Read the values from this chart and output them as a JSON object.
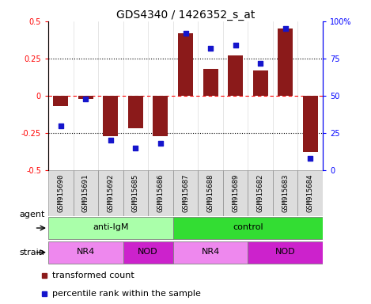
{
  "title": "GDS4340 / 1426352_s_at",
  "samples": [
    "GSM915690",
    "GSM915691",
    "GSM915692",
    "GSM915685",
    "GSM915686",
    "GSM915687",
    "GSM915688",
    "GSM915689",
    "GSM915682",
    "GSM915683",
    "GSM915684"
  ],
  "bar_values": [
    -0.07,
    -0.02,
    -0.27,
    -0.22,
    -0.27,
    0.42,
    0.18,
    0.27,
    0.17,
    0.45,
    -0.38
  ],
  "dot_values_pct": [
    30,
    48,
    20,
    15,
    18,
    92,
    82,
    84,
    72,
    95,
    8
  ],
  "bar_color": "#8B1A1A",
  "dot_color": "#1515CC",
  "ylim": [
    -0.5,
    0.5
  ],
  "y2lim": [
    0,
    100
  ],
  "yticks": [
    -0.5,
    -0.25,
    0,
    0.25,
    0.5
  ],
  "y2ticks": [
    0,
    25,
    50,
    75,
    100
  ],
  "ytick_labels": [
    "-0.5",
    "-0.25",
    "0",
    "0.25",
    "0.5"
  ],
  "y2tick_labels": [
    "0",
    "25",
    "50",
    "75",
    "100%"
  ],
  "agent_groups": [
    {
      "label": "anti-IgM",
      "start": 0,
      "end": 5,
      "color": "#AAFFAA"
    },
    {
      "label": "control",
      "start": 5,
      "end": 11,
      "color": "#33DD33"
    }
  ],
  "strain_groups": [
    {
      "label": "NR4",
      "start": 0,
      "end": 3,
      "color": "#EE88EE"
    },
    {
      "label": "NOD",
      "start": 3,
      "end": 5,
      "color": "#CC22CC"
    },
    {
      "label": "NR4",
      "start": 5,
      "end": 8,
      "color": "#EE88EE"
    },
    {
      "label": "NOD",
      "start": 8,
      "end": 11,
      "color": "#CC22CC"
    }
  ],
  "legend_items": [
    {
      "label": "transformed count",
      "color": "#8B1A1A"
    },
    {
      "label": "percentile rank within the sample",
      "color": "#1515CC"
    }
  ],
  "title_fontsize": 10,
  "tick_fontsize": 7,
  "label_fontsize": 8,
  "sample_label_fontsize": 6.5
}
